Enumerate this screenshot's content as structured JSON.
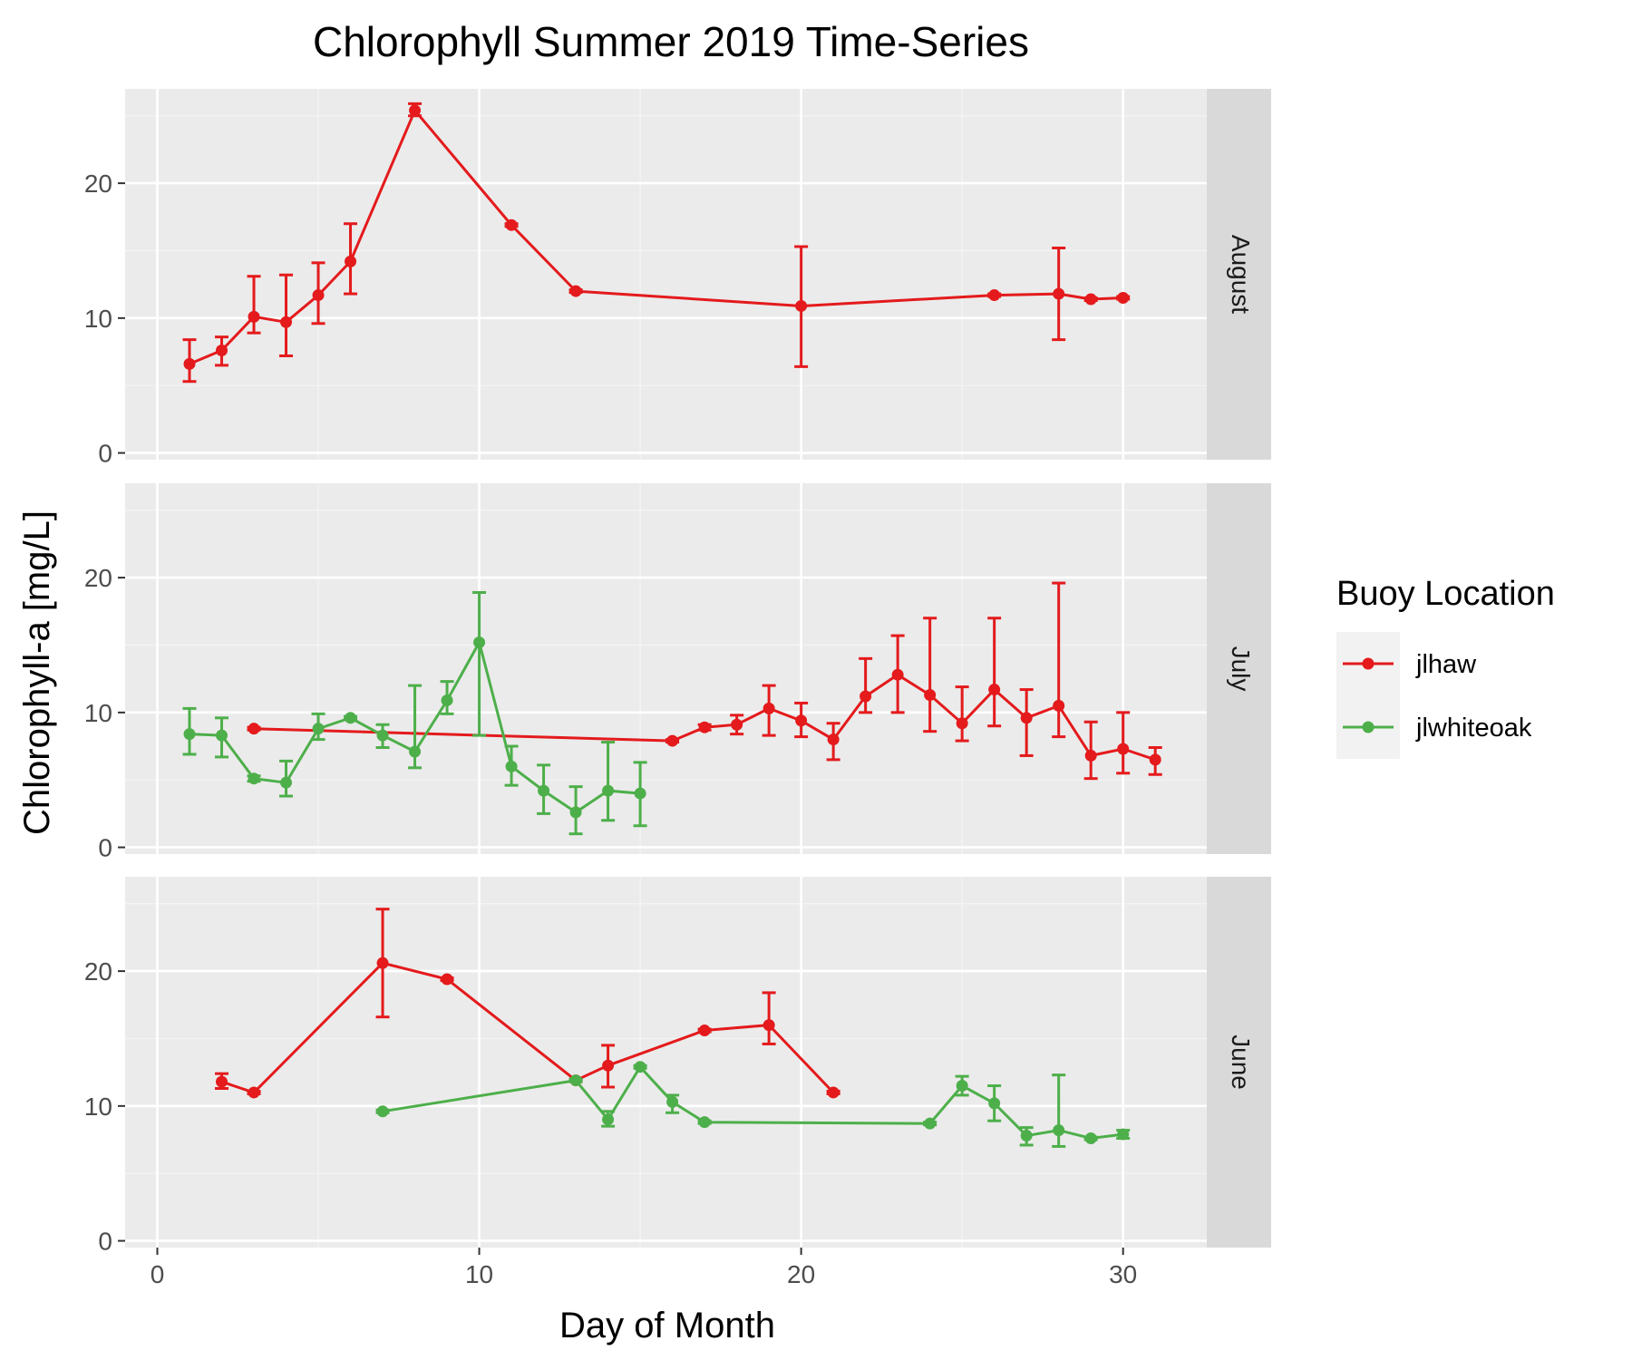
{
  "chart_data": {
    "type": "line",
    "title": "Chlorophyll Summer 2019 Time-Series",
    "xlabel": "Day of Month",
    "ylabel": "Chlorophyll-a [mg/L]",
    "xlim": [
      -1.0,
      32.6
    ],
    "ylim": [
      -0.5,
      27
    ],
    "x_ticks": [
      0,
      10,
      20,
      30
    ],
    "y_ticks": [
      0,
      10,
      20
    ],
    "grid": true,
    "legend": {
      "title": "Buoy Location",
      "position": "right",
      "entries": [
        "jlhaw",
        "jlwhiteoak"
      ]
    },
    "colors": {
      "jlhaw": "#e41a1c",
      "jlwhiteoak": "#4daf4a"
    },
    "panels": [
      {
        "label": "August",
        "series": [
          {
            "name": "jlhaw",
            "points": [
              {
                "x": 1,
                "y": 6.6,
                "lo": 5.3,
                "hi": 8.4
              },
              {
                "x": 2,
                "y": 7.6,
                "lo": 6.5,
                "hi": 8.6
              },
              {
                "x": 3,
                "y": 10.1,
                "lo": 8.9,
                "hi": 13.1
              },
              {
                "x": 4,
                "y": 9.7,
                "lo": 7.2,
                "hi": 13.2
              },
              {
                "x": 5,
                "y": 11.7,
                "lo": 9.6,
                "hi": 14.1
              },
              {
                "x": 6,
                "y": 14.2,
                "lo": 11.8,
                "hi": 17.0
              },
              {
                "x": 8,
                "y": 25.4,
                "lo": 25.0,
                "hi": 25.9
              },
              {
                "x": 11,
                "y": 16.9,
                "lo": 16.8,
                "hi": 17.0
              },
              {
                "x": 13,
                "y": 12.0,
                "lo": 11.9,
                "hi": 12.1
              },
              {
                "x": 20,
                "y": 10.9,
                "lo": 6.4,
                "hi": 15.3
              },
              {
                "x": 26,
                "y": 11.7,
                "lo": 11.6,
                "hi": 11.8
              },
              {
                "x": 28,
                "y": 11.8,
                "lo": 8.4,
                "hi": 15.2
              },
              {
                "x": 29,
                "y": 11.4,
                "lo": 11.3,
                "hi": 11.5
              },
              {
                "x": 30,
                "y": 11.5,
                "lo": 11.4,
                "hi": 11.6
              }
            ]
          }
        ]
      },
      {
        "label": "July",
        "series": [
          {
            "name": "jlhaw",
            "points": [
              {
                "x": 3,
                "y": 8.8,
                "lo": 8.7,
                "hi": 8.9
              },
              {
                "x": 16,
                "y": 7.9,
                "lo": 7.8,
                "hi": 8.0
              },
              {
                "x": 17,
                "y": 8.9,
                "lo": 8.7,
                "hi": 9.1
              },
              {
                "x": 18,
                "y": 9.1,
                "lo": 8.4,
                "hi": 9.8
              },
              {
                "x": 19,
                "y": 10.3,
                "lo": 8.3,
                "hi": 12.0
              },
              {
                "x": 20,
                "y": 9.4,
                "lo": 8.2,
                "hi": 10.7
              },
              {
                "x": 21,
                "y": 8.0,
                "lo": 6.5,
                "hi": 9.2
              },
              {
                "x": 22,
                "y": 11.2,
                "lo": 10.0,
                "hi": 14.0
              },
              {
                "x": 23,
                "y": 12.8,
                "lo": 10.0,
                "hi": 15.7
              },
              {
                "x": 24,
                "y": 11.3,
                "lo": 8.6,
                "hi": 17.0
              },
              {
                "x": 25,
                "y": 9.2,
                "lo": 7.9,
                "hi": 11.9
              },
              {
                "x": 26,
                "y": 11.7,
                "lo": 9.0,
                "hi": 17.0
              },
              {
                "x": 27,
                "y": 9.6,
                "lo": 6.8,
                "hi": 11.7
              },
              {
                "x": 28,
                "y": 10.5,
                "lo": 8.2,
                "hi": 19.6
              },
              {
                "x": 29,
                "y": 6.8,
                "lo": 5.1,
                "hi": 9.3
              },
              {
                "x": 30,
                "y": 7.3,
                "lo": 5.5,
                "hi": 10.0
              },
              {
                "x": 31,
                "y": 6.5,
                "lo": 5.4,
                "hi": 7.4
              }
            ]
          },
          {
            "name": "jlwhiteoak",
            "points": [
              {
                "x": 1,
                "y": 8.4,
                "lo": 6.9,
                "hi": 10.3
              },
              {
                "x": 2,
                "y": 8.3,
                "lo": 6.7,
                "hi": 9.6
              },
              {
                "x": 3,
                "y": 5.1,
                "lo": 4.9,
                "hi": 5.3
              },
              {
                "x": 4,
                "y": 4.8,
                "lo": 3.8,
                "hi": 6.4
              },
              {
                "x": 5,
                "y": 8.8,
                "lo": 8.0,
                "hi": 9.9
              },
              {
                "x": 6,
                "y": 9.6,
                "lo": 9.5,
                "hi": 9.7
              },
              {
                "x": 7,
                "y": 8.3,
                "lo": 7.4,
                "hi": 9.1
              },
              {
                "x": 8,
                "y": 7.1,
                "lo": 5.9,
                "hi": 12.0
              },
              {
                "x": 9,
                "y": 10.9,
                "lo": 9.9,
                "hi": 12.3
              },
              {
                "x": 10,
                "y": 15.2,
                "lo": 8.3,
                "hi": 18.9
              },
              {
                "x": 11,
                "y": 6.0,
                "lo": 4.6,
                "hi": 7.5
              },
              {
                "x": 12,
                "y": 4.2,
                "lo": 2.5,
                "hi": 6.1
              },
              {
                "x": 13,
                "y": 2.6,
                "lo": 1.0,
                "hi": 4.5
              },
              {
                "x": 14,
                "y": 4.2,
                "lo": 2.0,
                "hi": 7.8
              },
              {
                "x": 15,
                "y": 4.0,
                "lo": 1.6,
                "hi": 6.3
              }
            ]
          }
        ]
      },
      {
        "label": "June",
        "series": [
          {
            "name": "jlhaw",
            "points": [
              {
                "x": 2,
                "y": 11.8,
                "lo": 11.3,
                "hi": 12.4
              },
              {
                "x": 3,
                "y": 11.0,
                "lo": 10.9,
                "hi": 11.1
              },
              {
                "x": 7,
                "y": 20.6,
                "lo": 16.6,
                "hi": 24.6
              },
              {
                "x": 9,
                "y": 19.4,
                "lo": 19.3,
                "hi": 19.5
              },
              {
                "x": 13,
                "y": 11.9,
                "lo": 11.8,
                "hi": 12.0
              },
              {
                "x": 14,
                "y": 13.0,
                "lo": 11.4,
                "hi": 14.5
              },
              {
                "x": 17,
                "y": 15.6,
                "lo": 15.5,
                "hi": 15.7
              },
              {
                "x": 19,
                "y": 16.0,
                "lo": 14.6,
                "hi": 18.4
              },
              {
                "x": 21,
                "y": 11.0,
                "lo": 10.9,
                "hi": 11.1
              }
            ]
          },
          {
            "name": "jlwhiteoak",
            "points": [
              {
                "x": 7,
                "y": 9.6,
                "lo": 9.5,
                "hi": 9.7
              },
              {
                "x": 13,
                "y": 11.9,
                "lo": 11.8,
                "hi": 12.0
              },
              {
                "x": 14,
                "y": 9.0,
                "lo": 8.5,
                "hi": 9.6
              },
              {
                "x": 15,
                "y": 12.9,
                "lo": 12.8,
                "hi": 13.0
              },
              {
                "x": 16,
                "y": 10.3,
                "lo": 9.5,
                "hi": 10.8
              },
              {
                "x": 17,
                "y": 8.8,
                "lo": 8.7,
                "hi": 8.9
              },
              {
                "x": 24,
                "y": 8.7,
                "lo": 8.6,
                "hi": 8.8
              },
              {
                "x": 25,
                "y": 11.5,
                "lo": 10.8,
                "hi": 12.2
              },
              {
                "x": 26,
                "y": 10.2,
                "lo": 8.9,
                "hi": 11.5
              },
              {
                "x": 27,
                "y": 7.8,
                "lo": 7.1,
                "hi": 8.4
              },
              {
                "x": 28,
                "y": 8.2,
                "lo": 7.0,
                "hi": 12.3
              },
              {
                "x": 29,
                "y": 7.6,
                "lo": 7.5,
                "hi": 7.7
              },
              {
                "x": 30,
                "y": 7.9,
                "lo": 7.6,
                "hi": 8.2
              }
            ]
          }
        ]
      }
    ]
  }
}
